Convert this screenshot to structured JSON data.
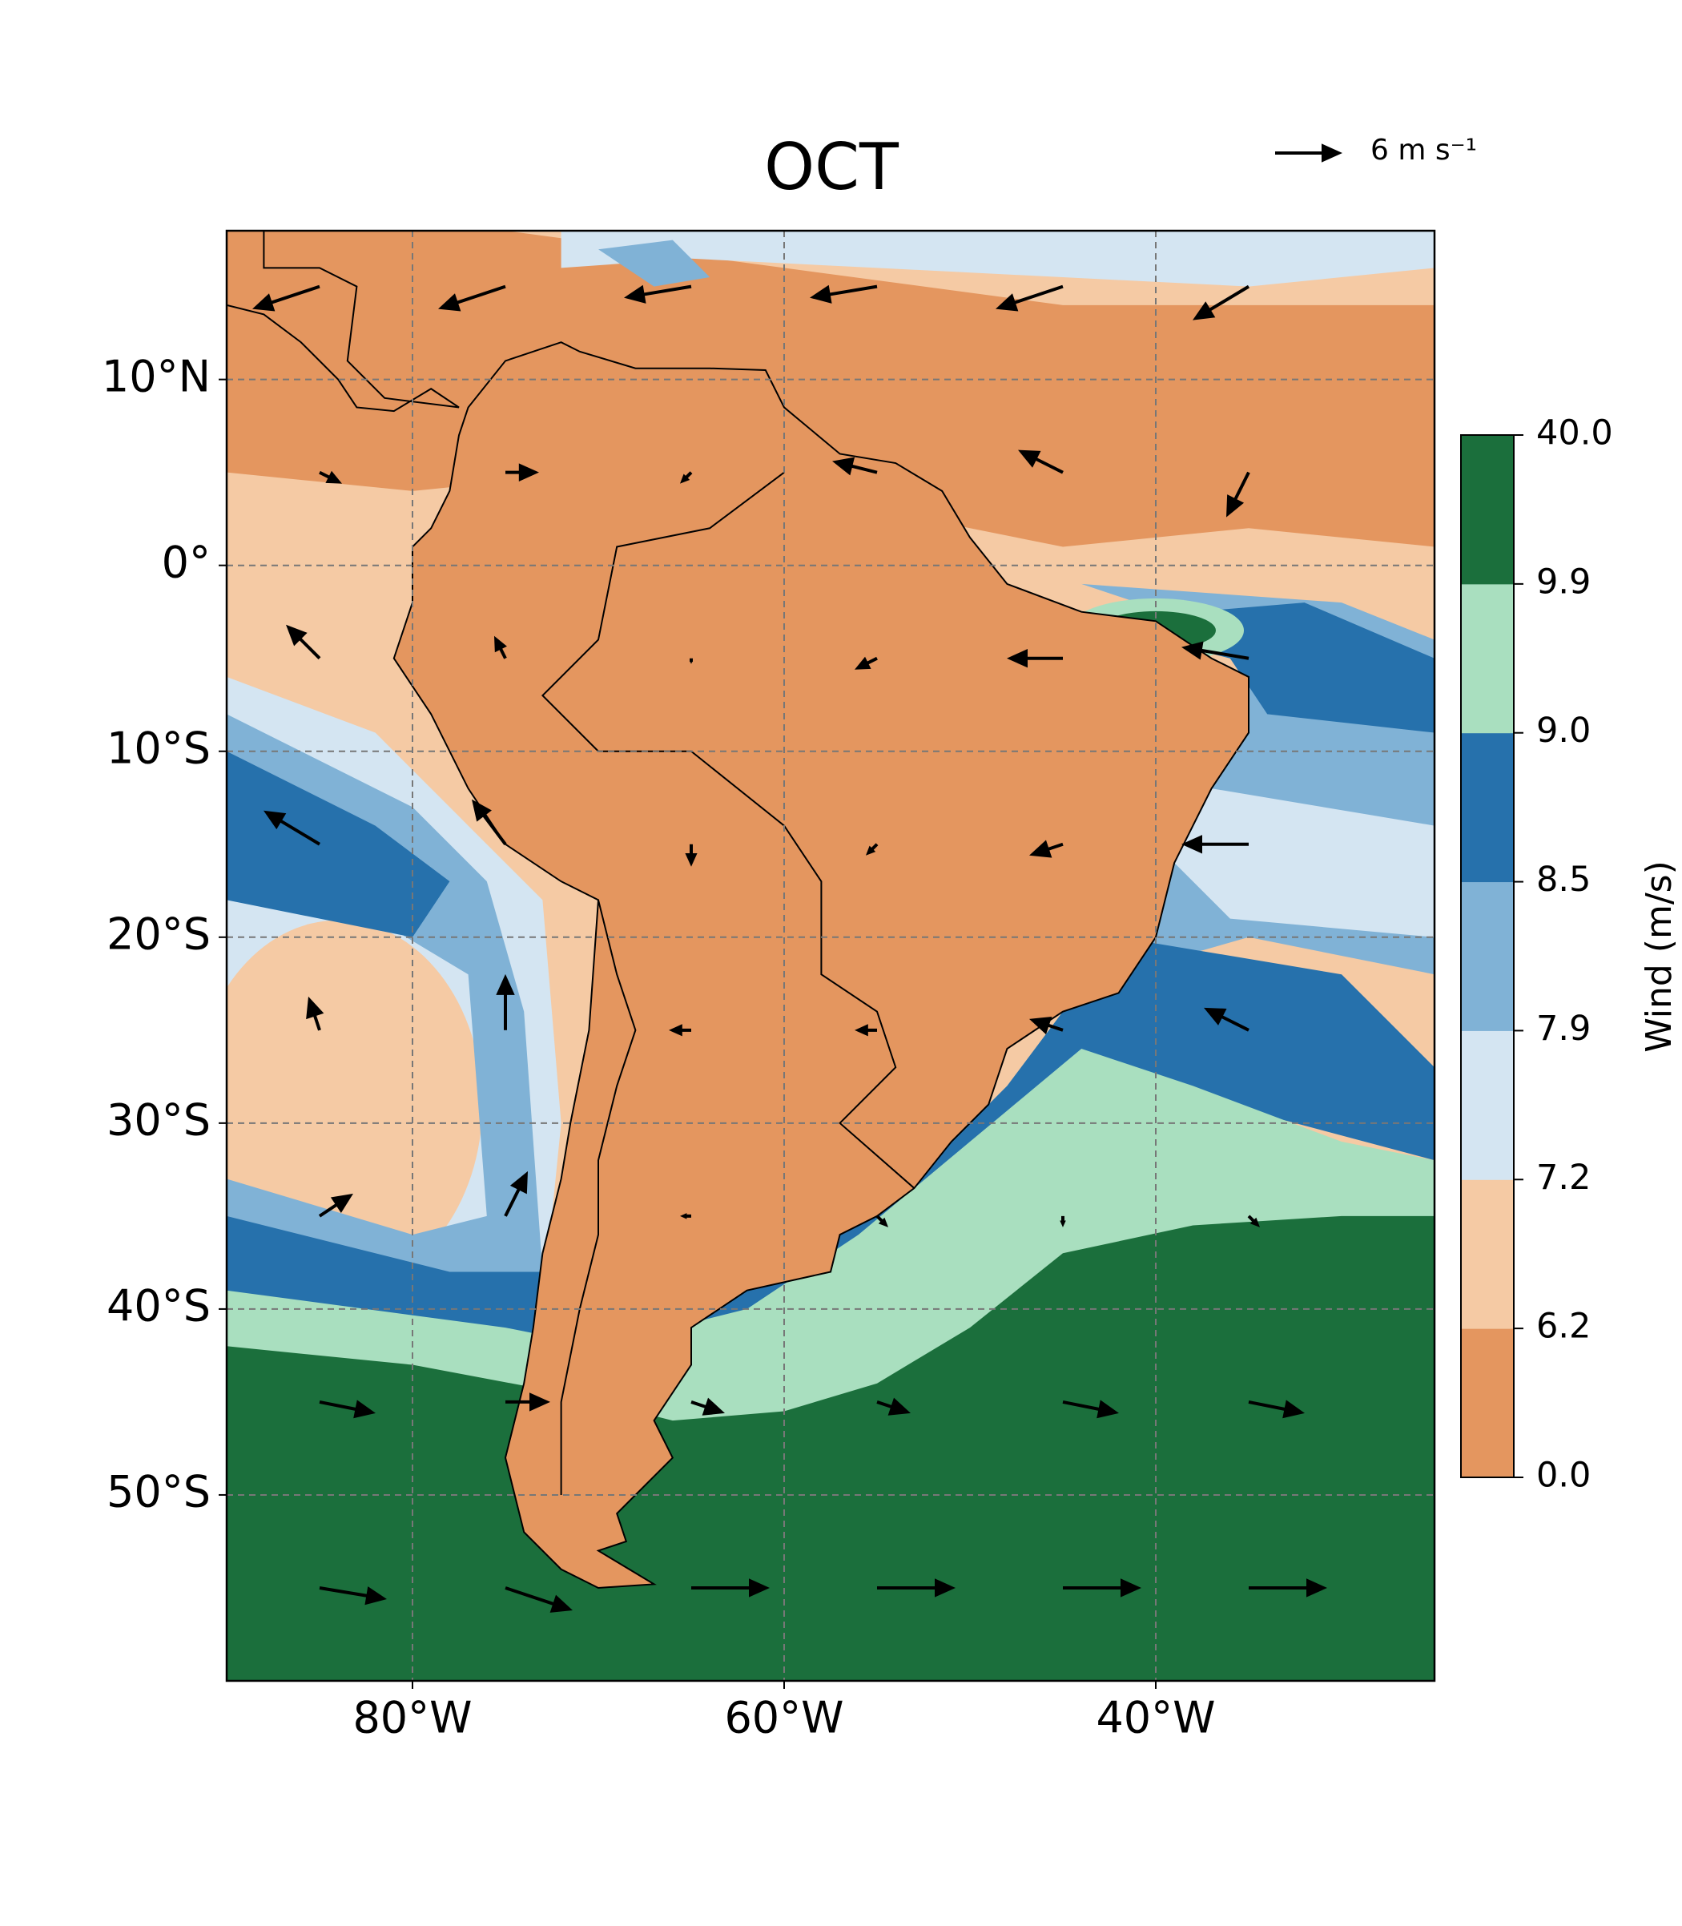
{
  "title": "OCT",
  "reference_arrow": {
    "value": 6,
    "label": "6 m s⁻¹"
  },
  "map": {
    "xlim": [
      -90,
      -25
    ],
    "ylim": [
      -60,
      18
    ],
    "grid": true,
    "xticks": [
      {
        "value": -80,
        "label": "80°W"
      },
      {
        "value": -60,
        "label": "60°W"
      },
      {
        "value": -40,
        "label": "40°W"
      }
    ],
    "yticks": [
      {
        "value": 10,
        "label": "10°N"
      },
      {
        "value": 0,
        "label": "0°"
      },
      {
        "value": -10,
        "label": "10°S"
      },
      {
        "value": -20,
        "label": "20°S"
      },
      {
        "value": -30,
        "label": "30°S"
      },
      {
        "value": -40,
        "label": "40°S"
      },
      {
        "value": -50,
        "label": "50°S"
      }
    ]
  },
  "colorbar": {
    "label": "Wind (m/s)",
    "levels": [
      {
        "value": 0,
        "label": "0.0"
      },
      6.2,
      7.2,
      7.9,
      8.5,
      {
        "value": 9,
        "label": "9.0"
      },
      9.9,
      {
        "value": 40,
        "label": "40.0"
      }
    ],
    "colors": [
      "#e4965f",
      "#f5caa4",
      "#d4e5f2",
      "#80b2d6",
      "#2671ac",
      "#a9dfbf",
      "#1b6f3c"
    ]
  },
  "wind": {
    "lon": [
      -85,
      -75,
      -65,
      -55,
      -45,
      -35
    ],
    "lat": [
      15,
      5,
      -5,
      -15,
      -25,
      -35,
      -45,
      -55
    ],
    "u": [
      [
        -6,
        -6,
        -6,
        -6,
        -6,
        -5
      ],
      [
        2,
        3,
        -1,
        -4,
        -4,
        -2
      ],
      [
        -3,
        -1,
        0,
        -2,
        -5,
        -6
      ],
      [
        -5,
        -3,
        0,
        -1,
        -3,
        -6
      ],
      [
        -1,
        0,
        -2,
        -2,
        -3,
        -4
      ],
      [
        3,
        2,
        -1,
        1,
        0,
        1
      ],
      [
        5,
        4,
        3,
        3,
        5,
        5
      ],
      [
        6,
        6,
        7,
        7,
        7,
        7
      ]
    ],
    "v": [
      [
        -2,
        -2,
        -1,
        -1,
        -2,
        -3
      ],
      [
        -1,
        0,
        -1,
        1,
        2,
        -4
      ],
      [
        3,
        2,
        -0.5,
        -1,
        0,
        1
      ],
      [
        3,
        4,
        -2,
        -1,
        -1,
        0
      ],
      [
        3,
        5,
        0,
        0,
        1,
        2
      ],
      [
        2,
        4,
        0,
        -1,
        -1,
        -1
      ],
      [
        -1,
        0,
        -1,
        -1,
        -1,
        -1
      ],
      [
        -1,
        -2,
        0,
        0,
        0,
        0
      ]
    ]
  }
}
